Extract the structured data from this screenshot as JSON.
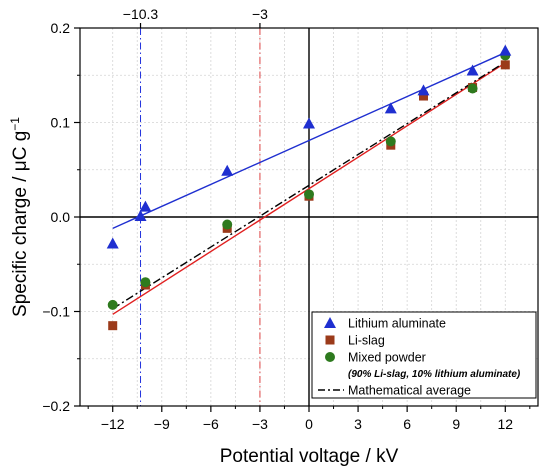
{
  "chart_data": {
    "type": "scatter",
    "xlabel": "Potential voltage / kV",
    "ylabel": "Specific charge / μC g",
    "ylabel_superscript": "−1",
    "xlim": [
      -14,
      14
    ],
    "ylim": [
      -0.2,
      0.2
    ],
    "x_ticks": [
      -12,
      -9,
      -6,
      -3,
      0,
      3,
      6,
      9,
      12
    ],
    "x_tick_labels": [
      "−12",
      "−9",
      "−6",
      "−3",
      "0",
      "3",
      "6",
      "9",
      "12"
    ],
    "y_ticks": [
      -0.2,
      -0.1,
      0.0,
      0.1,
      0.2
    ],
    "y_tick_labels": [
      "−0.2",
      "−0.1",
      "0.0",
      "0.1",
      "0.2"
    ],
    "grid": true,
    "legend_position": "bottom-right",
    "vertical_markers": [
      {
        "x": -10.3,
        "label": "−10.3",
        "color": "#2233dd"
      },
      {
        "x": -3,
        "label": "−3",
        "color": "#dd4444"
      }
    ],
    "series": [
      {
        "name": "Lithium aluminate",
        "marker": "triangle",
        "color": "#1f2fd0",
        "points": [
          [
            -12,
            -0.028
          ],
          [
            -10.3,
            0.001
          ],
          [
            -10,
            0.011
          ],
          [
            -5,
            0.049
          ],
          [
            0,
            0.099
          ],
          [
            5,
            0.115
          ],
          [
            7,
            0.134
          ],
          [
            10,
            0.155
          ],
          [
            12,
            0.176
          ]
        ],
        "fit": [
          [
            -12,
            -0.012
          ],
          [
            12,
            0.174
          ]
        ]
      },
      {
        "name": "Li-slag",
        "marker": "square",
        "color": "#9b3a1a",
        "points": [
          [
            -12,
            -0.115
          ],
          [
            -10,
            -0.072
          ],
          [
            -5,
            -0.012
          ],
          [
            0,
            0.022
          ],
          [
            5,
            0.076
          ],
          [
            7,
            0.128
          ],
          [
            10,
            0.137
          ],
          [
            12,
            0.161
          ]
        ],
        "fit": [
          [
            -12,
            -0.103
          ],
          [
            12,
            0.163
          ]
        ]
      },
      {
        "name": "Mixed powder",
        "sublabel": "(90% Li-slag, 10% lithium aluminate)",
        "marker": "circle",
        "color": "#2e7a1e",
        "points": [
          [
            -12,
            -0.093
          ],
          [
            -10,
            -0.069
          ],
          [
            -5,
            -0.008
          ],
          [
            0,
            0.024
          ],
          [
            5,
            0.08
          ],
          [
            10,
            0.136
          ],
          [
            12,
            0.171
          ]
        ]
      },
      {
        "name": "Mathematical average",
        "marker": "dashdot-line",
        "color": "#000000",
        "fit": [
          [
            -12,
            -0.097
          ],
          [
            12,
            0.164
          ]
        ]
      }
    ]
  }
}
